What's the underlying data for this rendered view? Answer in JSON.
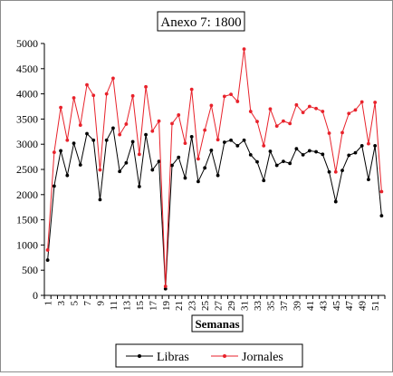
{
  "chart_data": {
    "type": "line",
    "title": "Anexo 7: 1800",
    "xlabel": "Semanas",
    "ylabel": "",
    "ylim": [
      0,
      5000
    ],
    "yticks": [
      0,
      500,
      1000,
      1500,
      2000,
      2500,
      3000,
      3500,
      4000,
      4500,
      5000
    ],
    "xlim": [
      1,
      52
    ],
    "xtick_labels": [
      "1",
      "3",
      "5",
      "7",
      "9",
      "11",
      "13",
      "15",
      "17",
      "19",
      "21",
      "23",
      "25",
      "27",
      "29",
      "31",
      "33",
      "35",
      "37",
      "39",
      "41",
      "43",
      "45",
      "47",
      "49",
      "51"
    ],
    "x": [
      1,
      2,
      3,
      4,
      5,
      6,
      7,
      8,
      9,
      10,
      11,
      12,
      13,
      14,
      15,
      16,
      17,
      18,
      19,
      20,
      21,
      22,
      23,
      24,
      25,
      26,
      27,
      28,
      29,
      30,
      31,
      32,
      33,
      34,
      35,
      36,
      37,
      38,
      39,
      40,
      41,
      42,
      43,
      44,
      45,
      46,
      47,
      48,
      49,
      50,
      51,
      52
    ],
    "grid": false,
    "legend_position": "bottom",
    "series": [
      {
        "name": "Libras",
        "color": "#000000",
        "values": [
          700,
          2170,
          2870,
          2380,
          3020,
          2590,
          3210,
          3080,
          1900,
          3080,
          3320,
          2460,
          2630,
          3050,
          2160,
          3190,
          2490,
          2660,
          130,
          2580,
          2740,
          2330,
          3150,
          2260,
          2530,
          2880,
          2380,
          3040,
          3080,
          2970,
          3080,
          2790,
          2650,
          2280,
          2860,
          2580,
          2660,
          2620,
          2910,
          2790,
          2870,
          2850,
          2800,
          2450,
          1860,
          2480,
          2780,
          2830,
          2970,
          2300,
          2970,
          1580
        ]
      },
      {
        "name": "Jornales",
        "color": "#e8222b",
        "values": [
          900,
          2840,
          3730,
          3080,
          3920,
          3380,
          4180,
          3970,
          2490,
          4000,
          4310,
          3190,
          3400,
          3960,
          2800,
          4140,
          3260,
          3460,
          180,
          3410,
          3580,
          3020,
          4090,
          2710,
          3280,
          3770,
          3090,
          3950,
          3990,
          3850,
          4890,
          3650,
          3450,
          2970,
          3700,
          3360,
          3460,
          3410,
          3780,
          3630,
          3750,
          3710,
          3650,
          3220,
          2450,
          3230,
          3610,
          3680,
          3840,
          3010,
          3830,
          2060
        ]
      }
    ]
  }
}
